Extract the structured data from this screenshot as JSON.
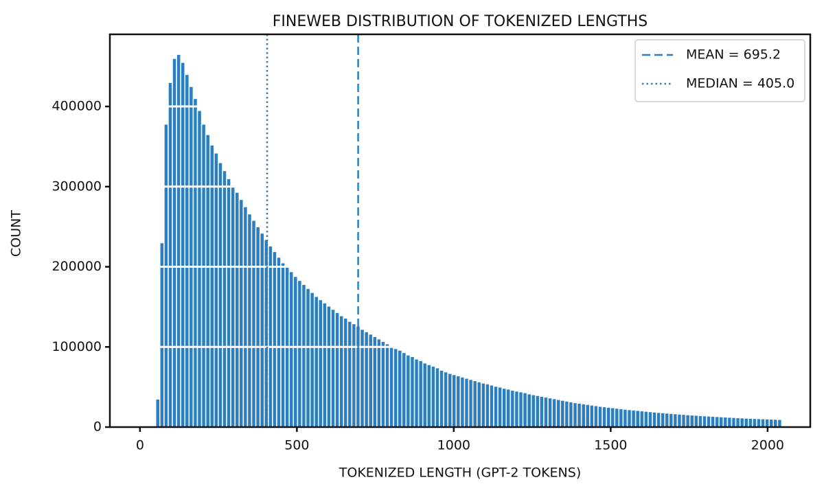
{
  "chart_data": {
    "type": "histogram",
    "title": "FINEWEB DISTRIBUTION OF TOKENIZED LENGTHS",
    "x_label": "TOKENIZED LENGTH (GPT-2 TOKENS)",
    "y_label": "COUNT",
    "color": "#2b7fc1",
    "grid": true,
    "grid_color": "#ffffff",
    "legend_position": "upper right",
    "xlim": [
      -96,
      2136
    ],
    "ylim": [
      0,
      490000
    ],
    "xticks": [
      0,
      500,
      1000,
      1500,
      2000
    ],
    "yticks": [
      0,
      100000,
      200000,
      300000,
      400000
    ],
    "bins": [
      50,
      63.3,
      76.6,
      89.9,
      103.2,
      116.5,
      129.8,
      143.1,
      156.4,
      169.7,
      183,
      196.3,
      209.6,
      222.9,
      236.2,
      249.5,
      262.8,
      276.1,
      289.4,
      302.7,
      316,
      329.3,
      342.6,
      355.9,
      369.2,
      382.5,
      395.8,
      409.1,
      422.4,
      435.7,
      449,
      462.3,
      475.6,
      488.9,
      502.2,
      515.5,
      528.8,
      542.1,
      555.4,
      568.7,
      582,
      595.3,
      608.6,
      621.9,
      635.2,
      648.5,
      661.8,
      675.1,
      688.4,
      701.7,
      715,
      728.3,
      741.6,
      754.9,
      768.2,
      781.5,
      794.8,
      808.1,
      821.4,
      834.7,
      848,
      861.3,
      874.6,
      887.9,
      901.2,
      914.5,
      927.8,
      941.1,
      954.4,
      967.7,
      981,
      994.3,
      1007.6,
      1020.9,
      1034.2,
      1047.5,
      1060.8,
      1074.1,
      1087.4,
      1100.7,
      1114,
      1127.3,
      1140.6,
      1153.9,
      1167.2,
      1180.5,
      1193.8,
      1207.1,
      1220.4,
      1233.7,
      1247,
      1260.3,
      1273.6,
      1286.9,
      1300.2,
      1313.5,
      1326.8,
      1340.1,
      1353.4,
      1366.7,
      1380,
      1393.3,
      1406.6,
      1419.9,
      1433.2,
      1446.5,
      1459.8,
      1473.1,
      1486.4,
      1499.7,
      1513,
      1526.3,
      1539.6,
      1552.9,
      1566.2,
      1579.5,
      1592.8,
      1606.1,
      1619.4,
      1632.7,
      1646,
      1659.3,
      1672.6,
      1685.9,
      1699.2,
      1712.5,
      1725.8,
      1739.1,
      1752.4,
      1765.7,
      1779,
      1792.3,
      1805.6,
      1818.9,
      1832.2,
      1845.5,
      1858.8,
      1872.1,
      1885.4,
      1898.7,
      1912,
      1925.3,
      1938.6,
      1951.9,
      1965.2,
      1978.5,
      1991.8,
      2005.1,
      2018.4,
      2031.7,
      2045
    ],
    "counts": [
      35000,
      230000,
      378000,
      430000,
      460000,
      465000,
      455000,
      440000,
      425000,
      410000,
      395000,
      378000,
      365000,
      352000,
      342000,
      330000,
      320000,
      310000,
      302000,
      293000,
      284000,
      275000,
      266000,
      258000,
      250000,
      242000,
      234000,
      226000,
      219000,
      212000,
      205000,
      200000,
      194000,
      188000,
      183000,
      178000,
      173000,
      168000,
      163000,
      159000,
      155000,
      151000,
      147000,
      143000,
      139000,
      136000,
      132000,
      129000,
      126000,
      122000,
      119000,
      116000,
      113000,
      110000,
      107000,
      104000,
      101000,
      98000,
      96000,
      93000,
      90000,
      88000,
      85000,
      83000,
      80000,
      78000,
      76000,
      74000,
      71000,
      69000,
      67000,
      65500,
      64000,
      62500,
      61000,
      59500,
      58000,
      56500,
      55000,
      54000,
      52500,
      51000,
      50000,
      48500,
      47500,
      46000,
      45000,
      44000,
      43000,
      41500,
      40500,
      39500,
      38500,
      37500,
      36500,
      35500,
      34500,
      33500,
      32500,
      31500,
      30500,
      29800,
      29000,
      28300,
      27500,
      26800,
      26000,
      25400,
      24800,
      24200,
      23600,
      23000,
      22400,
      21800,
      21300,
      20800,
      20300,
      19800,
      19300,
      18800,
      18300,
      17900,
      17500,
      17100,
      16700,
      16300,
      15900,
      15500,
      15100,
      14800,
      14400,
      14100,
      13800,
      13500,
      13200,
      12900,
      12600,
      12300,
      12000,
      11700,
      11500,
      11200,
      11000,
      10800,
      10600,
      10400,
      10200,
      10000,
      9800,
      9600
    ],
    "vlines": [
      {
        "name": "MEAN = 695.2",
        "value": 695.2,
        "style": "dashed",
        "color": "#2b7fc1"
      },
      {
        "name": "MEDIAN = 405.0",
        "value": 405.0,
        "style": "dotted",
        "color": "#2b7fc1"
      }
    ]
  }
}
